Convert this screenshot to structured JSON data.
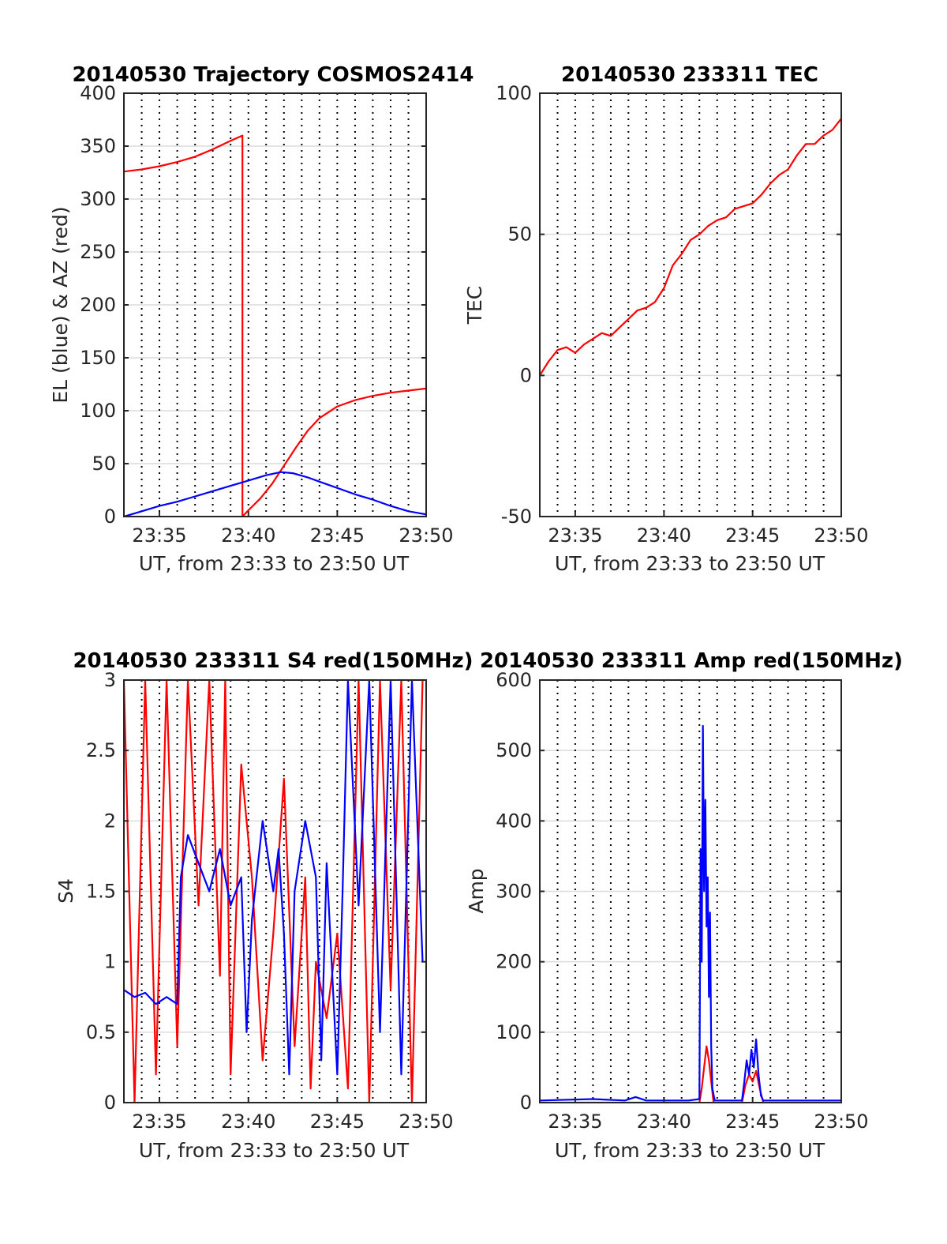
{
  "colors": {
    "red": "#ff0000",
    "blue": "#0000ff",
    "grid": "#dcdcdc",
    "axis": "#262626",
    "dotgrid": "#000000"
  },
  "chart_data": [
    {
      "id": "trajectory",
      "type": "line",
      "title": "20140530 Trajectory COSMOS2414",
      "xlabel": "UT, from 23:33 to 23:50 UT",
      "ylabel": "EL (blue) & AZ (red)",
      "xlim": [
        23.55,
        23.8333
      ],
      "ylim": [
        0,
        400
      ],
      "yticks": [
        0,
        50,
        100,
        150,
        200,
        250,
        300,
        350,
        400
      ],
      "xticks": [
        {
          "value": 23.5833,
          "label": "23:35"
        },
        {
          "value": 23.6667,
          "label": "23:40"
        },
        {
          "value": 23.75,
          "label": "23:45"
        },
        {
          "value": 23.8333,
          "label": "23:50"
        }
      ],
      "minor_dotted_x": [
        23.55,
        23.5667,
        23.5833,
        23.6,
        23.6167,
        23.6333,
        23.65,
        23.6667,
        23.6833,
        23.7,
        23.7167,
        23.7333,
        23.75,
        23.7667,
        23.7833,
        23.8,
        23.8167,
        23.8333
      ],
      "series": [
        {
          "color": "red",
          "x": [
            23.55,
            23.5667,
            23.5833,
            23.6,
            23.6167,
            23.6333,
            23.65,
            23.6611,
            23.6611,
            23.6667,
            23.6778,
            23.6889,
            23.7,
            23.7111,
            23.7222,
            23.7333,
            23.75,
            23.7667,
            23.7833,
            23.8,
            23.8167,
            23.8333
          ],
          "y": [
            326,
            328,
            331,
            335,
            340,
            347,
            355,
            360,
            0,
            6,
            17,
            31,
            48,
            65,
            81,
            93,
            104,
            110,
            114,
            117,
            119,
            121
          ]
        },
        {
          "color": "blue",
          "x": [
            23.55,
            23.5667,
            23.5833,
            23.6,
            23.6167,
            23.6333,
            23.65,
            23.6667,
            23.6833,
            23.6972,
            23.7083,
            23.7222,
            23.7333,
            23.75,
            23.7667,
            23.7833,
            23.8,
            23.8167,
            23.8333
          ],
          "y": [
            0,
            5,
            10,
            14,
            19,
            24,
            29,
            34,
            39,
            42,
            41,
            37,
            33,
            27,
            21,
            16,
            10,
            5,
            2
          ]
        }
      ]
    },
    {
      "id": "tec",
      "type": "line",
      "title": "20140530 233311 TEC",
      "xlabel": "UT, from 23:33 to 23:50 UT",
      "ylabel": "TEC",
      "xlim": [
        23.55,
        23.8333
      ],
      "ylim": [
        -50,
        100
      ],
      "yticks": [
        -50,
        0,
        50,
        100
      ],
      "xticks": [
        {
          "value": 23.5833,
          "label": "23:35"
        },
        {
          "value": 23.6667,
          "label": "23:40"
        },
        {
          "value": 23.75,
          "label": "23:45"
        },
        {
          "value": 23.8333,
          "label": "23:50"
        }
      ],
      "minor_dotted_x": [
        23.55,
        23.5667,
        23.5833,
        23.6,
        23.6167,
        23.6333,
        23.65,
        23.6667,
        23.6833,
        23.7,
        23.7167,
        23.7333,
        23.75,
        23.7667,
        23.7833,
        23.8,
        23.8167,
        23.8333
      ],
      "series": [
        {
          "color": "red",
          "x": [
            23.55,
            23.5583,
            23.5667,
            23.575,
            23.5833,
            23.5917,
            23.6,
            23.6083,
            23.6167,
            23.625,
            23.6333,
            23.6417,
            23.65,
            23.6583,
            23.6667,
            23.675,
            23.6833,
            23.6917,
            23.7,
            23.7083,
            23.7167,
            23.725,
            23.7333,
            23.7417,
            23.75,
            23.7583,
            23.7667,
            23.775,
            23.7833,
            23.7917,
            23.8,
            23.8083,
            23.8167,
            23.825,
            23.8333
          ],
          "y": [
            0,
            5,
            9,
            10,
            8,
            11,
            13,
            15,
            14,
            17,
            20,
            23,
            24,
            26,
            31,
            39,
            43,
            48,
            50,
            53,
            55,
            56,
            59,
            60,
            61,
            64,
            68,
            71,
            73,
            78,
            82,
            82,
            85,
            87,
            91
          ]
        }
      ]
    },
    {
      "id": "s4",
      "type": "line",
      "title": "20140530 233311 S4 red(150MHz)",
      "xlabel": "UT, from 23:33 to 23:50 UT",
      "ylabel": "S4",
      "xlim": [
        23.55,
        23.8333
      ],
      "ylim": [
        0,
        3
      ],
      "yticks": [
        0,
        0.5,
        1,
        1.5,
        2,
        2.5,
        3
      ],
      "xticks": [
        {
          "value": 23.5833,
          "label": "23:35"
        },
        {
          "value": 23.6667,
          "label": "23:40"
        },
        {
          "value": 23.75,
          "label": "23:45"
        },
        {
          "value": 23.8333,
          "label": "23:50"
        }
      ],
      "minor_dotted_x": [
        23.55,
        23.5667,
        23.5833,
        23.6,
        23.6167,
        23.6333,
        23.65,
        23.6667,
        23.6833,
        23.7,
        23.7167,
        23.7333,
        23.75,
        23.7667,
        23.7833,
        23.8,
        23.8167,
        23.8333
      ],
      "series": [
        {
          "color": "red",
          "x": [
            23.55,
            23.56,
            23.57,
            23.58,
            23.59,
            23.6,
            23.61,
            23.62,
            23.63,
            23.64,
            23.645,
            23.65,
            23.66,
            23.67,
            23.68,
            23.69,
            23.7,
            23.71,
            23.72,
            23.725,
            23.73,
            23.74,
            23.75,
            23.76,
            23.77,
            23.78,
            23.79,
            23.8,
            23.81,
            23.82,
            23.83
          ],
          "y": [
            3,
            0,
            3,
            0.2,
            3,
            0.4,
            3,
            1.4,
            3,
            0.9,
            3,
            0.2,
            2.4,
            1.6,
            0.3,
            1.2,
            2.3,
            0.4,
            1.6,
            0.1,
            1.0,
            0.6,
            1.2,
            0.1,
            3,
            0,
            3,
            0.8,
            3,
            0,
            3
          ]
        },
        {
          "color": "blue",
          "x": [
            23.55,
            23.56,
            23.57,
            23.58,
            23.59,
            23.6,
            23.6033,
            23.61,
            23.62,
            23.63,
            23.64,
            23.65,
            23.66,
            23.665,
            23.67,
            23.68,
            23.69,
            23.695,
            23.7,
            23.705,
            23.71,
            23.72,
            23.73,
            23.735,
            23.74,
            23.75,
            23.755,
            23.76,
            23.77,
            23.78,
            23.79,
            23.8,
            23.81,
            23.82,
            23.83
          ],
          "y": [
            0.8,
            0.75,
            0.78,
            0.7,
            0.75,
            0.7,
            1.6,
            1.9,
            1.7,
            1.5,
            1.8,
            1.4,
            1.6,
            0.5,
            1.3,
            2.0,
            1.5,
            1.8,
            1.2,
            0.2,
            1.5,
            2.0,
            1.6,
            0.3,
            1.7,
            0.2,
            1.5,
            3,
            1.4,
            3,
            0.5,
            3,
            0.2,
            3,
            1.0
          ]
        }
      ]
    },
    {
      "id": "amp",
      "type": "line",
      "title": "20140530 233311 Amp red(150MHz)",
      "xlabel": "UT, from 23:33 to 23:50 UT",
      "ylabel": "Amp",
      "xlim": [
        23.55,
        23.8333
      ],
      "ylim": [
        0,
        600
      ],
      "yticks": [
        0,
        100,
        200,
        300,
        400,
        500,
        600
      ],
      "xticks": [
        {
          "value": 23.5833,
          "label": "23:35"
        },
        {
          "value": 23.6667,
          "label": "23:40"
        },
        {
          "value": 23.75,
          "label": "23:45"
        },
        {
          "value": 23.8333,
          "label": "23:50"
        }
      ],
      "minor_dotted_x": [
        23.55,
        23.5667,
        23.5833,
        23.6,
        23.6167,
        23.6333,
        23.65,
        23.6667,
        23.6833,
        23.7,
        23.7167,
        23.7333,
        23.75,
        23.7667,
        23.7833,
        23.8,
        23.8167,
        23.8333
      ],
      "series": [
        {
          "color": "red",
          "x": [
            23.55,
            23.7,
            23.7022,
            23.7044,
            23.7067,
            23.7089,
            23.7111,
            23.7133,
            23.74,
            23.7433,
            23.7467,
            23.75,
            23.7533,
            23.7567,
            23.76,
            23.8333
          ],
          "y": [
            0,
            0,
            20,
            50,
            80,
            60,
            30,
            0,
            0,
            25,
            40,
            30,
            45,
            20,
            0,
            0
          ]
        },
        {
          "color": "blue",
          "x": [
            23.55,
            23.6,
            23.63,
            23.64,
            23.65,
            23.69,
            23.7,
            23.7011,
            23.7022,
            23.7033,
            23.7044,
            23.7056,
            23.7067,
            23.7078,
            23.7089,
            23.71,
            23.7111,
            23.7122,
            23.7144,
            23.74,
            23.7422,
            23.7444,
            23.7467,
            23.7489,
            23.7511,
            23.7533,
            23.7556,
            23.7578,
            23.76,
            23.8333
          ],
          "y": [
            3,
            5,
            3,
            8,
            3,
            3,
            5,
            360,
            200,
            535,
            300,
            430,
            250,
            320,
            150,
            270,
            80,
            20,
            3,
            3,
            30,
            60,
            40,
            75,
            50,
            90,
            40,
            10,
            3,
            3
          ]
        }
      ]
    }
  ]
}
